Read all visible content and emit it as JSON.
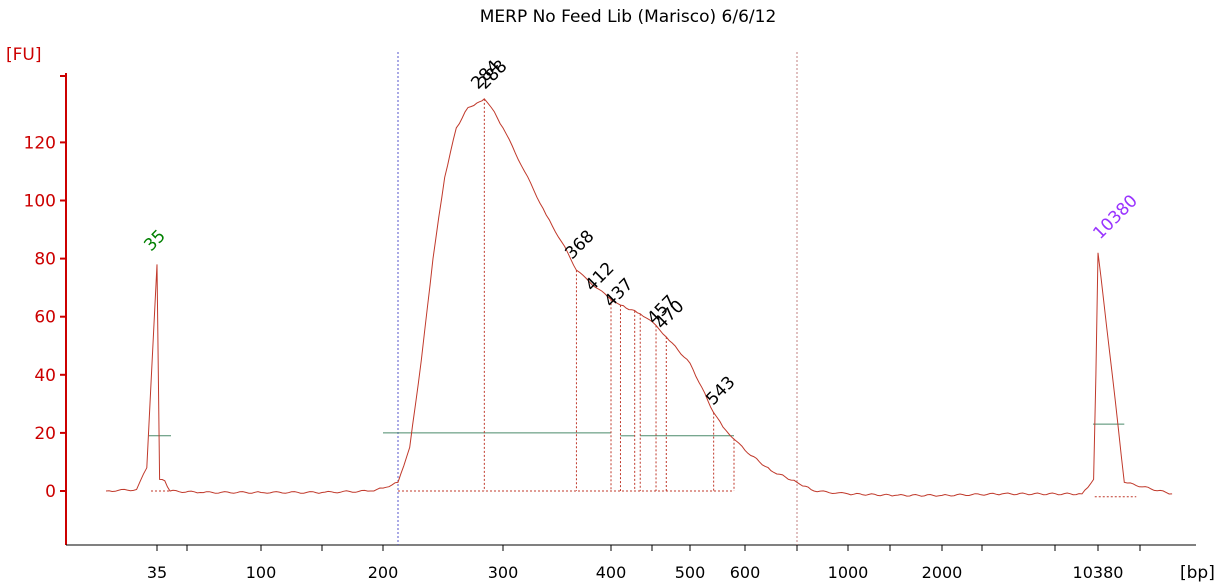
{
  "chart_data": {
    "type": "line",
    "title": "MERP No Feed Lib (Marisco) 6/6/12",
    "ylabel": "[FU]",
    "xlabel": "[bp]",
    "ylim": [
      -15,
      150
    ],
    "y_ticks": [
      0,
      20,
      40,
      60,
      80,
      100,
      120
    ],
    "x_ticks": [
      "35",
      "100",
      "200",
      "300",
      "400",
      "500",
      "600",
      "1000",
      "2000",
      "10380"
    ],
    "x_scale": "bp ladder (non-linear)",
    "grid": false,
    "colors": {
      "trace": "#c0392b",
      "axis": "#cc0000",
      "marker_lower": "#008000",
      "marker_upper": "#9933ff",
      "peak_label": "#000000",
      "region_line": "#4a8a6a",
      "region_bound_left": "#5555cc",
      "region_bound_right": "#c08080"
    },
    "series": [
      {
        "values": [
          [
            "30",
            0
          ],
          [
            "33",
            0.5
          ],
          [
            "34",
            8
          ],
          [
            "35",
            78
          ],
          [
            "36",
            4
          ],
          [
            "38",
            3.5
          ],
          [
            "40",
            0
          ],
          [
            "60",
            -0.5
          ],
          [
            "100",
            -0.5
          ],
          [
            "150",
            -0.5
          ],
          [
            "190",
            0
          ],
          [
            "200",
            1
          ],
          [
            "210",
            3
          ],
          [
            "220",
            15
          ],
          [
            "230",
            45
          ],
          [
            "240",
            80
          ],
          [
            "250",
            108
          ],
          [
            "260",
            125
          ],
          [
            "270",
            132
          ],
          [
            "280",
            134
          ],
          [
            "284",
            135
          ],
          [
            "290",
            132
          ],
          [
            "300",
            125
          ],
          [
            "320",
            110
          ],
          [
            "340",
            95
          ],
          [
            "360",
            82
          ],
          [
            "368",
            76
          ],
          [
            "380",
            72
          ],
          [
            "400",
            66
          ],
          [
            "412",
            64
          ],
          [
            "437",
            61
          ],
          [
            "457",
            57
          ],
          [
            "470",
            53
          ],
          [
            "500",
            44
          ],
          [
            "543",
            27
          ],
          [
            "560",
            22
          ],
          [
            "600",
            14
          ],
          [
            "650",
            7
          ],
          [
            "700",
            3
          ],
          [
            "800",
            0
          ],
          [
            "1000",
            -1
          ],
          [
            "1500",
            -1.5
          ],
          [
            "2000",
            -1.5
          ],
          [
            "5000",
            -1
          ],
          [
            "9000",
            -1
          ],
          [
            "10000",
            4
          ],
          [
            "10200",
            40
          ],
          [
            "10380",
            82
          ],
          [
            "10500",
            40
          ],
          [
            "10600",
            3
          ],
          [
            "11000",
            -1
          ]
        ]
      }
    ],
    "peaks": [
      {
        "label": "35",
        "color": "marker_lower"
      },
      {
        "label": "284",
        "color": "peak_label"
      },
      {
        "label": "288",
        "color": "peak_label"
      },
      {
        "label": "368",
        "color": "peak_label"
      },
      {
        "label": "412",
        "color": "peak_label"
      },
      {
        "label": "437",
        "color": "peak_label"
      },
      {
        "label": "457",
        "color": "peak_label"
      },
      {
        "label": "470",
        "color": "peak_label"
      },
      {
        "label": "543",
        "color": "peak_label"
      },
      {
        "label": "10380",
        "color": "marker_upper"
      }
    ]
  }
}
